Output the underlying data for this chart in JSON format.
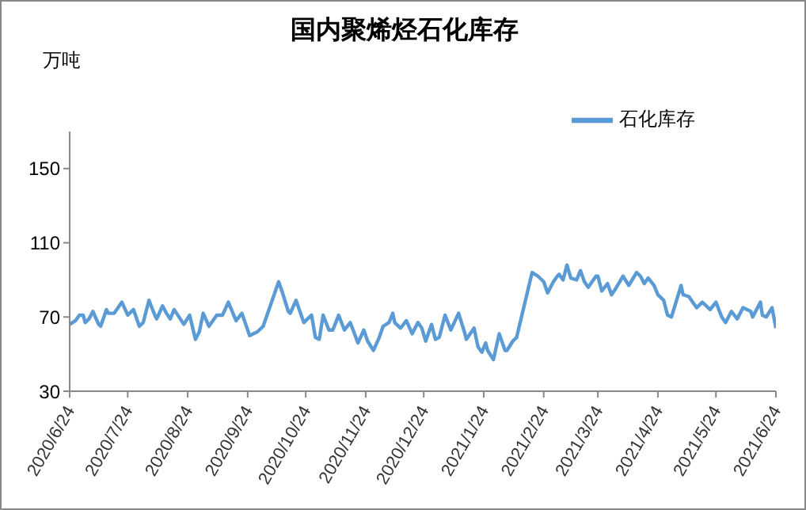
{
  "chart_data": {
    "type": "line",
    "title": "国内聚烯烃石化库存",
    "ylabel": "万吨",
    "x": [
      "2020-06-24",
      "2020-06-27",
      "2020-06-29",
      "2020-07-01",
      "2020-07-02",
      "2020-07-04",
      "2020-07-06",
      "2020-07-09",
      "2020-07-10",
      "2020-07-13",
      "2020-07-14",
      "2020-07-17",
      "2020-07-21",
      "2020-07-24",
      "2020-07-27",
      "2020-07-30",
      "2020-08-01",
      "2020-08-04",
      "2020-08-07",
      "2020-08-08",
      "2020-08-11",
      "2020-08-13",
      "2020-08-15",
      "2020-08-17",
      "2020-08-22",
      "2020-08-25",
      "2020-08-28",
      "2020-08-30",
      "2020-09-01",
      "2020-09-04",
      "2020-09-08",
      "2020-09-11",
      "2020-09-14",
      "2020-09-18",
      "2020-09-21",
      "2020-09-25",
      "2020-09-29",
      "2020-10-02",
      "2020-10-10",
      "2020-10-12",
      "2020-10-15",
      "2020-10-16",
      "2020-10-19",
      "2020-10-23",
      "2020-10-27",
      "2020-10-29",
      "2020-10-31",
      "2020-11-02",
      "2020-11-05",
      "2020-11-07",
      "2020-11-10",
      "2020-11-13",
      "2020-11-16",
      "2020-11-20",
      "2020-11-23",
      "2020-11-25",
      "2020-11-28",
      "2020-12-01",
      "2020-12-03",
      "2020-12-06",
      "2020-12-08",
      "2020-12-09",
      "2020-12-12",
      "2020-12-15",
      "2020-12-18",
      "2020-12-21",
      "2020-12-23",
      "2020-12-25",
      "2020-12-28",
      "2020-12-30",
      "2021-01-01",
      "2021-01-04",
      "2021-01-07",
      "2021-01-11",
      "2021-01-14",
      "2021-01-15",
      "2021-01-19",
      "2021-01-21",
      "2021-01-23",
      "2021-01-25",
      "2021-01-26",
      "2021-01-29",
      "2021-02-01",
      "2021-02-04",
      "2021-02-05",
      "2021-02-08",
      "2021-02-10",
      "2021-02-18",
      "2021-02-21",
      "2021-02-24",
      "2021-02-26",
      "2021-03-01",
      "2021-03-03",
      "2021-03-04",
      "2021-03-06",
      "2021-03-08",
      "2021-03-10",
      "2021-03-13",
      "2021-03-15",
      "2021-03-17",
      "2021-03-19",
      "2021-03-23",
      "2021-03-24",
      "2021-03-26",
      "2021-03-29",
      "2021-03-31",
      "2021-04-02",
      "2021-04-06",
      "2021-04-09",
      "2021-04-13",
      "2021-04-15",
      "2021-04-17",
      "2021-04-19",
      "2021-04-22",
      "2021-04-24",
      "2021-04-27",
      "2021-04-29",
      "2021-05-01",
      "2021-05-06",
      "2021-05-07",
      "2021-05-10",
      "2021-05-14",
      "2021-05-17",
      "2021-05-21",
      "2021-05-24",
      "2021-05-27",
      "2021-05-29",
      "2021-06-01",
      "2021-06-04",
      "2021-06-07",
      "2021-06-11",
      "2021-06-12",
      "2021-06-16",
      "2021-06-17",
      "2021-06-19",
      "2021-06-22",
      "2021-06-24"
    ],
    "series": [
      {
        "name": "石化库存",
        "color": "#5b9bd5",
        "values": [
          66,
          68,
          71,
          71,
          67,
          69,
          73,
          66,
          65,
          74,
          72,
          72,
          78,
          71,
          74,
          65,
          67,
          79,
          71,
          69,
          76,
          72,
          69,
          74,
          66,
          71,
          58,
          62,
          72,
          65,
          71,
          71,
          78,
          68,
          72,
          60,
          62,
          65,
          89,
          83,
          73,
          72,
          79,
          67,
          71,
          59,
          58,
          71,
          63,
          63,
          71,
          63,
          67,
          56,
          63,
          57,
          52,
          59,
          65,
          67,
          72,
          67,
          64,
          68,
          61,
          67,
          64,
          57,
          66,
          58,
          59,
          71,
          63,
          72,
          62,
          58,
          64,
          54,
          51,
          56,
          52,
          47,
          61,
          52,
          52,
          57,
          59,
          94,
          92,
          89,
          83,
          89,
          92,
          93,
          90,
          98,
          91,
          90,
          95,
          89,
          86,
          92,
          92,
          84,
          88,
          82,
          85,
          92,
          87,
          94,
          92,
          88,
          91,
          87,
          82,
          79,
          71,
          70,
          87,
          82,
          81,
          75,
          78,
          74,
          78,
          70,
          67,
          73,
          69,
          75,
          73,
          70,
          78,
          71,
          70,
          75,
          64
        ]
      }
    ],
    "xlim": [
      "2020-06-24",
      "2021-06-24"
    ],
    "xticks": [
      {
        "value": "2020-06-24",
        "label": "2020/6/24"
      },
      {
        "value": "2020-07-24",
        "label": "2020/7/24"
      },
      {
        "value": "2020-08-24",
        "label": "2020/8/24"
      },
      {
        "value": "2020-09-24",
        "label": "2020/9/24"
      },
      {
        "value": "2020-10-24",
        "label": "2020/10/24"
      },
      {
        "value": "2020-11-24",
        "label": "2020/11/24"
      },
      {
        "value": "2020-12-24",
        "label": "2020/12/24"
      },
      {
        "value": "2021-01-24",
        "label": "2021/1/24"
      },
      {
        "value": "2021-02-24",
        "label": "2021/2/24"
      },
      {
        "value": "2021-03-24",
        "label": "2021/3/24"
      },
      {
        "value": "2021-04-24",
        "label": "2021/4/24"
      },
      {
        "value": "2021-05-24",
        "label": "2021/5/24"
      },
      {
        "value": "2021-06-24",
        "label": "2021/6/24"
      }
    ],
    "ylim": [
      30,
      170
    ],
    "yticks": [
      30,
      70,
      110,
      150
    ],
    "grid": false,
    "legend": "top right"
  }
}
